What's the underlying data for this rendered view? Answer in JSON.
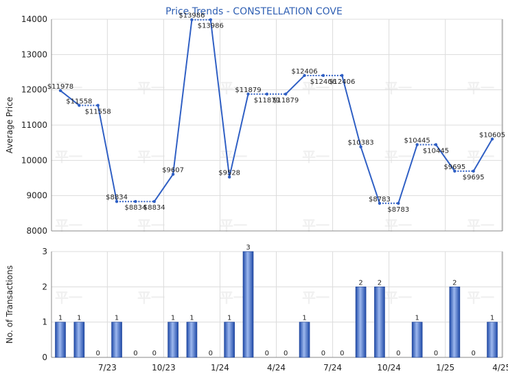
{
  "chart_data": [
    {
      "type": "line",
      "title": "Price Trends - CONSTELLATION COVE",
      "ylabel": "Average Price",
      "ylim": [
        8000,
        14000
      ],
      "yticks": [
        "8000",
        "9000",
        "10000",
        "11000",
        "12000",
        "13000",
        "14000"
      ],
      "grid": true,
      "series": [
        {
          "values": [
            11978,
            11558,
            11558,
            8834,
            8834,
            8834,
            9607,
            13986,
            13986,
            9528,
            11879,
            11879,
            11879,
            12406,
            12406,
            12406,
            10383,
            8783,
            8783,
            10445,
            10445,
            9695,
            9695,
            10605
          ],
          "labels": [
            "$11978",
            "$11558",
            "$11558",
            "$8834",
            "$8834",
            "$8834",
            "$9607",
            "$13986",
            "$13986",
            "$9528",
            "$11879",
            "$11879",
            "$11879",
            "$12406",
            "$12406",
            "$12406",
            "$10383",
            "$8783",
            "$8783",
            "$10445",
            "$10445",
            "$9695",
            "$9695",
            "$10605"
          ],
          "color": "#2f5fc4"
        }
      ]
    },
    {
      "type": "bar",
      "ylabel": "No. of Transactions",
      "ylim": [
        0,
        3
      ],
      "yticks": [
        "0",
        "1",
        "2",
        "3"
      ],
      "grid": true,
      "xticks": [
        "7/23",
        "10/23",
        "1/24",
        "4/24",
        "7/24",
        "10/24",
        "1/25",
        "4/25"
      ],
      "series": [
        {
          "values": [
            1,
            1,
            0,
            1,
            0,
            0,
            1,
            1,
            0,
            1,
            3,
            0,
            0,
            1,
            0,
            0,
            2,
            2,
            0,
            1,
            0,
            2,
            0,
            1
          ],
          "labels": [
            "1",
            "1",
            "0",
            "1",
            "0",
            "0",
            "1",
            "1",
            "0",
            "1",
            "3",
            "0",
            "0",
            "1",
            "0",
            "0",
            "2",
            "2",
            "0",
            "1",
            "0",
            "2",
            "0",
            "1"
          ],
          "color": "#2f5fc4"
        }
      ]
    }
  ]
}
